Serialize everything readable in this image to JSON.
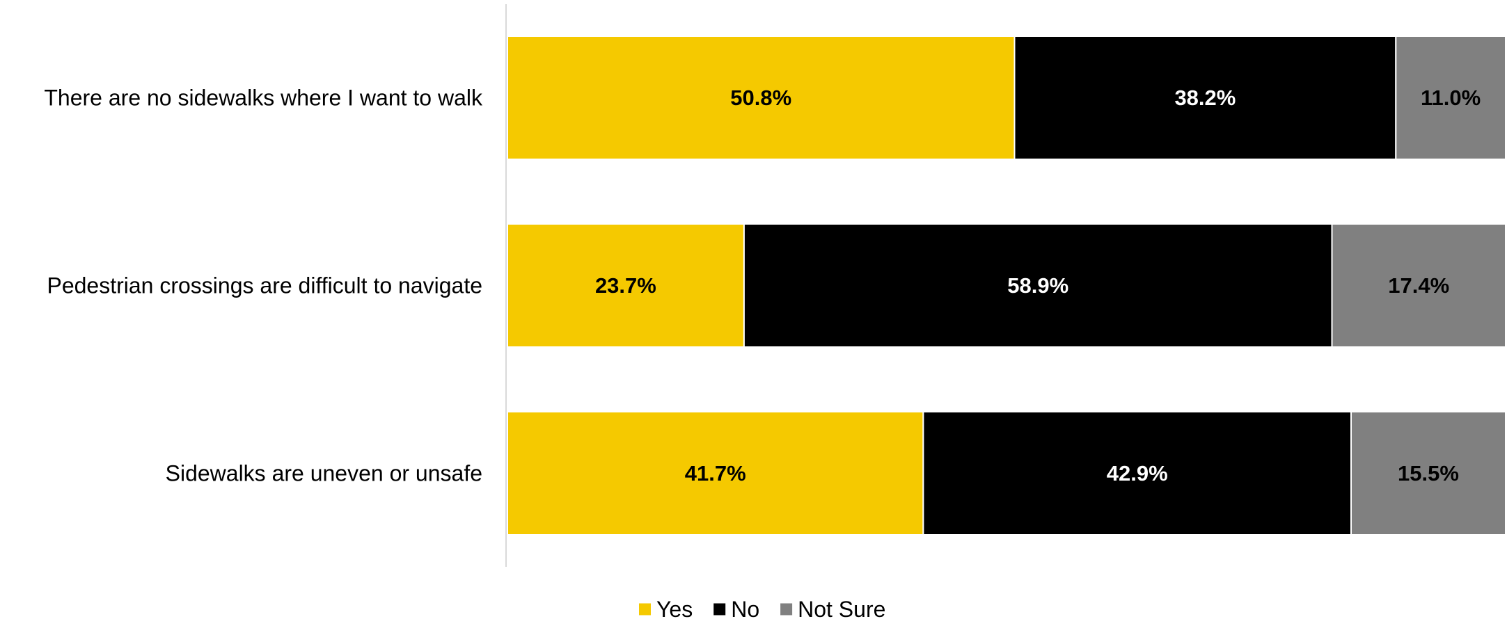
{
  "chart_data": {
    "type": "bar",
    "orientation": "horizontal",
    "stacked": true,
    "percent_stacked": true,
    "title": "",
    "xlabel": "",
    "ylabel": "",
    "xlim": [
      0,
      100
    ],
    "grid": false,
    "legend_position": "bottom",
    "categories": [
      "There are no sidewalks where I want to walk",
      "Pedestrian crossings are difficult to navigate",
      "Sidewalks are uneven or unsafe"
    ],
    "series": [
      {
        "name": "Yes",
        "color": "#F5C900",
        "label_color": "#000000",
        "values": [
          50.8,
          23.7,
          41.7
        ],
        "labels": [
          "50.8%",
          "23.7%",
          "41.7%"
        ]
      },
      {
        "name": "No",
        "color": "#000000",
        "label_color": "#FFFFFF",
        "values": [
          38.2,
          58.9,
          42.9
        ],
        "labels": [
          "38.2%",
          "58.9%",
          "42.9%"
        ]
      },
      {
        "name": "Not Sure",
        "color": "#808080",
        "label_color": "#000000",
        "values": [
          11.0,
          17.4,
          15.5
        ],
        "labels": [
          "11.0%",
          "17.4%",
          "15.5%"
        ]
      }
    ]
  }
}
